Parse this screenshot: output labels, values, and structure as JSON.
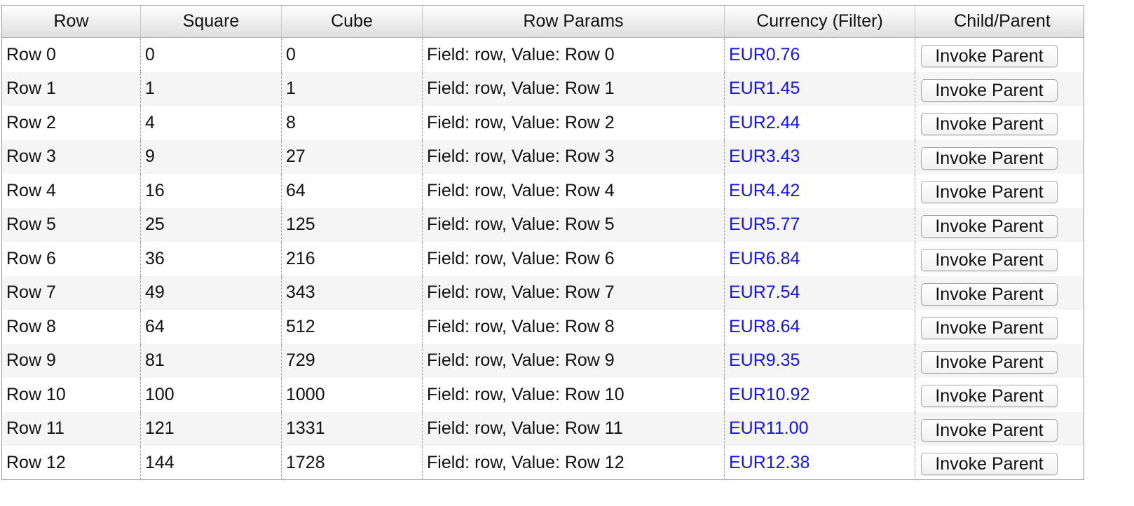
{
  "columns": [
    "Row",
    "Square",
    "Cube",
    "Row Params",
    "Currency (Filter)",
    "Child/Parent"
  ],
  "button_label": "Invoke Parent",
  "colors": {
    "currency_text": "#1414e6",
    "alt_row_bg": "#f5f5f5",
    "header_bg": "#e6e6e6"
  },
  "rows": [
    {
      "row": "Row 0",
      "square": "0",
      "cube": "0",
      "params": "Field: row, Value: Row 0",
      "currency": "EUR0.76"
    },
    {
      "row": "Row 1",
      "square": "1",
      "cube": "1",
      "params": "Field: row, Value: Row 1",
      "currency": "EUR1.45"
    },
    {
      "row": "Row 2",
      "square": "4",
      "cube": "8",
      "params": "Field: row, Value: Row 2",
      "currency": "EUR2.44"
    },
    {
      "row": "Row 3",
      "square": "9",
      "cube": "27",
      "params": "Field: row, Value: Row 3",
      "currency": "EUR3.43"
    },
    {
      "row": "Row 4",
      "square": "16",
      "cube": "64",
      "params": "Field: row, Value: Row 4",
      "currency": "EUR4.42"
    },
    {
      "row": "Row 5",
      "square": "25",
      "cube": "125",
      "params": "Field: row, Value: Row 5",
      "currency": "EUR5.77"
    },
    {
      "row": "Row 6",
      "square": "36",
      "cube": "216",
      "params": "Field: row, Value: Row 6",
      "currency": "EUR6.84"
    },
    {
      "row": "Row 7",
      "square": "49",
      "cube": "343",
      "params": "Field: row, Value: Row 7",
      "currency": "EUR7.54"
    },
    {
      "row": "Row 8",
      "square": "64",
      "cube": "512",
      "params": "Field: row, Value: Row 8",
      "currency": "EUR8.64"
    },
    {
      "row": "Row 9",
      "square": "81",
      "cube": "729",
      "params": "Field: row, Value: Row 9",
      "currency": "EUR9.35"
    },
    {
      "row": "Row 10",
      "square": "100",
      "cube": "1000",
      "params": "Field: row, Value: Row 10",
      "currency": "EUR10.92"
    },
    {
      "row": "Row 11",
      "square": "121",
      "cube": "1331",
      "params": "Field: row, Value: Row 11",
      "currency": "EUR11.00"
    },
    {
      "row": "Row 12",
      "square": "144",
      "cube": "1728",
      "params": "Field: row, Value: Row 12",
      "currency": "EUR12.38"
    }
  ]
}
